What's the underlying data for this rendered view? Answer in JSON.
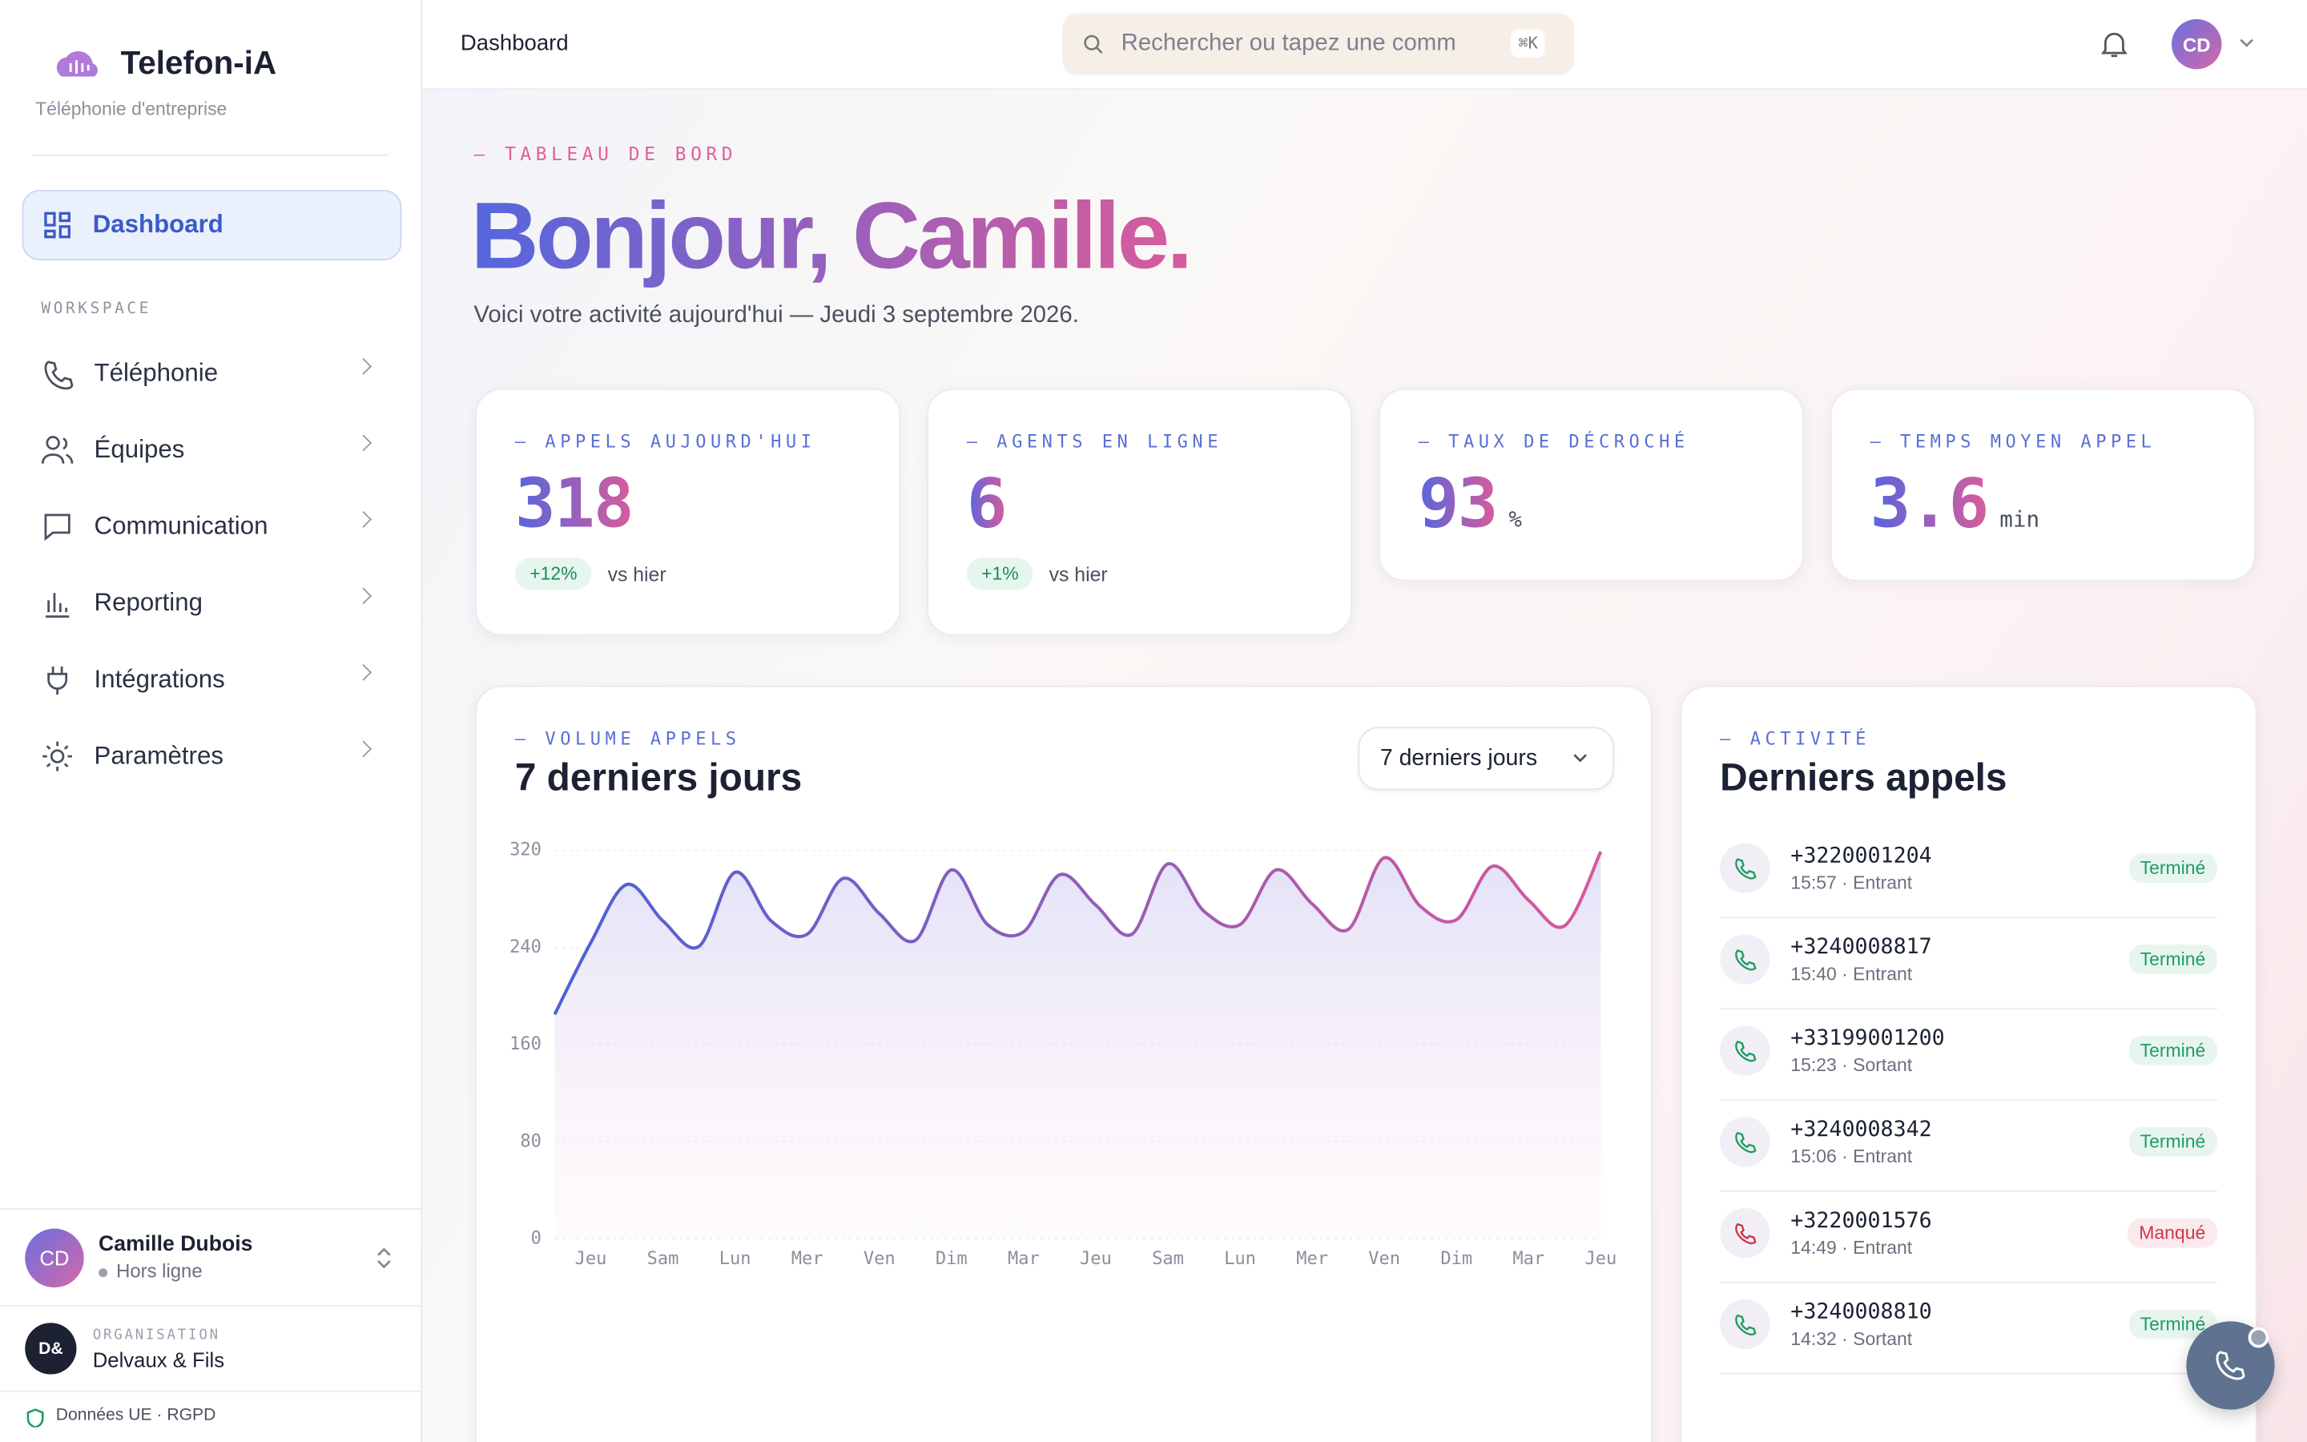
{
  "sidebar": {
    "brand": "Telefon-iA",
    "tagline": "Téléphonie d'entreprise",
    "active": "Dashboard",
    "section": "WORKSPACE",
    "items": [
      "Téléphonie",
      "Équipes",
      "Communication",
      "Reporting",
      "Intégrations",
      "Paramètres"
    ],
    "user": {
      "initials": "CD",
      "name": "Camille Dubois",
      "status": "Hors ligne"
    },
    "org": {
      "initials": "D&",
      "label": "ORGANISATION",
      "name": "Delvaux & Fils"
    },
    "footer": "Données UE · RGPD"
  },
  "header": {
    "title": "Dashboard",
    "search": "Rechercher ou tapez une comm",
    "shortcut": "⌘K",
    "initials": "CD"
  },
  "hero": {
    "eyebrow": "— TABLEAU DE BORD",
    "title": "Bonjour, Camille.",
    "subtitle": "Voici votre activité aujourd'hui — Jeudi 3 septembre 2026."
  },
  "stats": [
    {
      "label": "— APPELS AUJOURD'HUI",
      "value": "318",
      "badge": "+12%",
      "note": "vs hier"
    },
    {
      "label": "— AGENTS EN LIGNE",
      "value": "6",
      "badge": "+1%",
      "note": "vs hier"
    },
    {
      "label": "— TAUX DE DÉCROCHÉ",
      "value": "93",
      "unit": "%"
    },
    {
      "label": "— TEMPS MOYEN APPEL",
      "value": "3.6",
      "unit": "min"
    }
  ],
  "chart_data": {
    "type": "line",
    "eyebrow": "— VOLUME APPELS",
    "title": "7 derniers jours",
    "dropdown": "7 derniers jours",
    "categories": [
      null,
      "Jeu",
      null,
      "Sam",
      null,
      "Lun",
      null,
      "Mer",
      null,
      "Ven",
      null,
      "Dim",
      null,
      "Mar",
      null,
      "Jeu",
      null,
      "Sam",
      null,
      "Lun",
      null,
      "Mer",
      null,
      "Ven",
      null,
      "Dim",
      null,
      "Mar",
      null,
      "Jeu"
    ],
    "values": [
      185,
      244,
      292,
      262,
      241,
      302,
      262,
      251,
      297,
      268,
      246,
      304,
      259,
      253,
      300,
      275,
      251,
      309,
      270,
      259,
      304,
      276,
      255,
      314,
      274,
      263,
      307,
      279,
      258,
      319
    ],
    "colors": [
      "#4a62d6",
      "#d9579a"
    ],
    "ylim": [
      0,
      320
    ],
    "yticks": [
      0,
      80,
      160,
      240,
      320
    ],
    "grid": true
  },
  "activity": {
    "eyebrow": "— ACTIVITÉ",
    "title": "Derniers appels",
    "calls": [
      {
        "number": "+3220001204",
        "meta": "15:57 · Entrant",
        "status": "Terminé",
        "color": "#1f9d63"
      },
      {
        "number": "+3240008817",
        "meta": "15:40 · Entrant",
        "status": "Terminé",
        "color": "#1f9d63"
      },
      {
        "number": "+33199001200",
        "meta": "15:23 · Sortant",
        "status": "Terminé",
        "color": "#1f9d63"
      },
      {
        "number": "+3240008342",
        "meta": "15:06 · Entrant",
        "status": "Terminé",
        "color": "#1f9d63"
      },
      {
        "number": "+3220001576",
        "meta": "14:49 · Entrant",
        "status": "Manqué",
        "color": "#d0344a"
      },
      {
        "number": "+3240008810",
        "meta": "14:32 · Sortant",
        "status": "Terminé",
        "color": "#1f9d63"
      }
    ]
  }
}
